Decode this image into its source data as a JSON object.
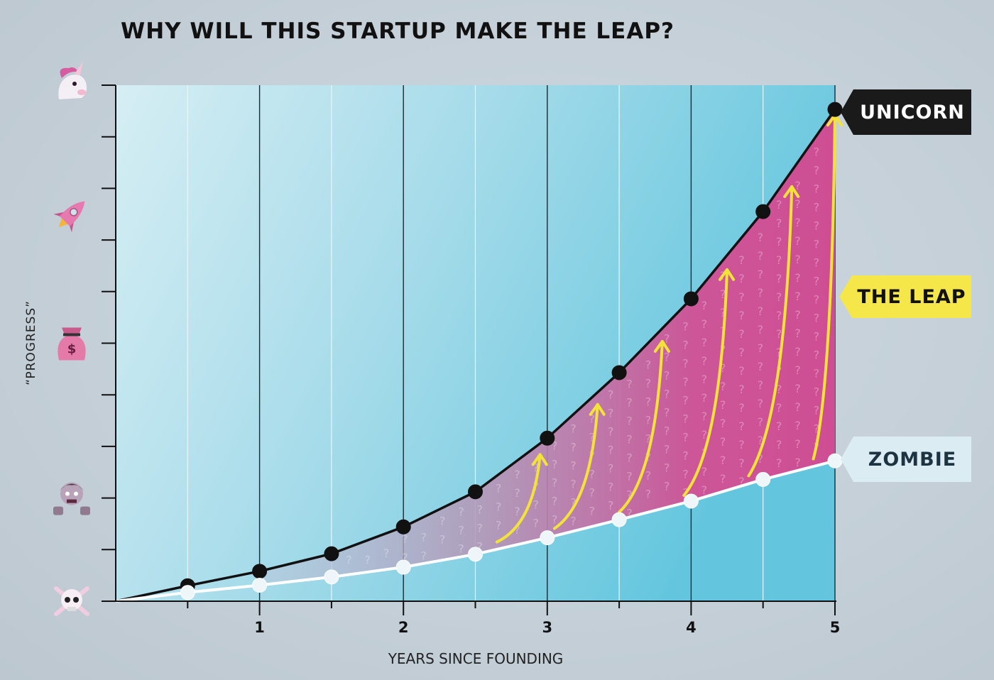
{
  "chart_data": {
    "type": "line",
    "title": "WHY WILL THIS STARTUP MAKE THE LEAP?",
    "xlabel": "YEARS SINCE FOUNDING",
    "ylabel": "“PROGRESS”",
    "xlim": [
      0,
      5
    ],
    "ylim": [
      0,
      10
    ],
    "x_ticks": [
      1,
      2,
      3,
      4,
      5
    ],
    "x_tick_labels": [
      "1",
      "2",
      "3",
      "4",
      "5"
    ],
    "y_level_icons": [
      "skull-icon",
      "zombie-icon",
      "money-bag-icon",
      "rocket-icon",
      "unicorn-icon"
    ],
    "y_level_values": [
      0,
      2,
      5,
      7.5,
      10
    ],
    "series": [
      {
        "name": "UNICORN",
        "color": "#111111",
        "x": [
          0,
          0.5,
          1,
          1.5,
          2,
          2.5,
          3,
          3.5,
          4,
          4.5,
          5
        ],
        "y": [
          0,
          0.3,
          0.58,
          0.92,
          1.44,
          2.12,
          3.16,
          4.43,
          5.86,
          7.55,
          9.53
        ]
      },
      {
        "name": "ZOMBIE",
        "color": "#ffffff",
        "x": [
          0,
          0.5,
          1,
          1.5,
          2,
          2.5,
          3,
          3.5,
          4,
          4.5,
          5
        ],
        "y": [
          0,
          0.17,
          0.31,
          0.47,
          0.66,
          0.91,
          1.23,
          1.58,
          1.94,
          2.36,
          2.72
        ]
      }
    ],
    "leap_arrows_x": [
      2.65,
      3.05,
      3.5,
      3.95,
      4.4,
      4.85
    ],
    "annotations": [
      "UNICORN",
      "THE LEAP",
      "ZOMBIE"
    ],
    "colors": {
      "plot_bg_left": "#cdeaf2",
      "plot_bg_right": "#5cc3dc",
      "leap_fill": "#d04f95",
      "leap_arrow": "#f3e23a",
      "unicorn_tag_bg": "#1a1a1a",
      "leap_tag_bg": "#f5e64a",
      "zombie_tag_bg": "#dcecf3"
    },
    "grid": true
  }
}
